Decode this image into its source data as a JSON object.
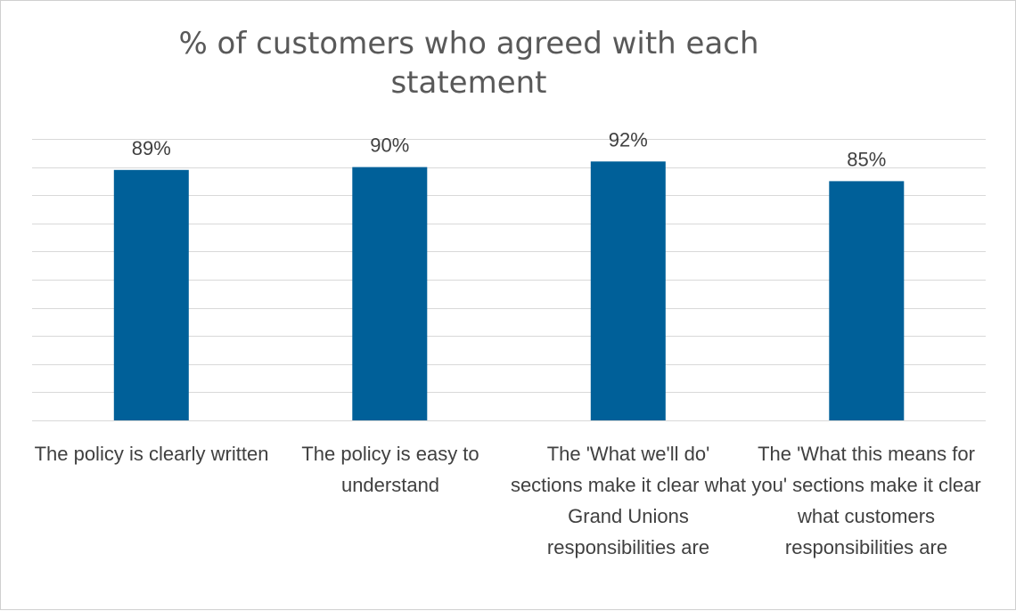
{
  "chart_data": {
    "type": "bar",
    "title": "% of customers who agreed with each\nstatement",
    "categories": [
      "The policy is clearly written",
      "The policy is easy to understand",
      "The 'What we'll do' sections make it clear what Grand Unions responsibilities are",
      "The 'What this means for you' sections make it clear what customers responsibilities are"
    ],
    "values": [
      89,
      90,
      92,
      85
    ],
    "data_labels": [
      "89%",
      "90%",
      "92%",
      "85%"
    ],
    "ylim": [
      0,
      100
    ],
    "grid": true,
    "legend": "none",
    "bar_color": "#006099"
  }
}
